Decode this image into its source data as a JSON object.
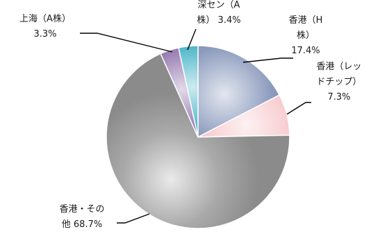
{
  "chart_data": {
    "type": "pie",
    "title": "",
    "slices": [
      {
        "label": "香港（H株）",
        "label_lines": [
          "香港（H",
          "株）",
          "17.4%"
        ],
        "value": 17.4,
        "color": "#8c9bbd"
      },
      {
        "label": "香港（レッドチップ）",
        "label_lines": [
          "香港（レッ",
          "ドチップ）",
          "7.3%"
        ],
        "value": 7.3,
        "color": "#f6c8cb"
      },
      {
        "label": "香港・その他",
        "label_lines": [
          "香港・その",
          "他 68.7%"
        ],
        "value": 68.7,
        "color": "#a9a9a9"
      },
      {
        "label": "上海（A株）",
        "label_lines": [
          "上海（A株）",
          "3.3%"
        ],
        "value": 3.3,
        "color": "#8a6aa8"
      },
      {
        "label": "深セン（A株）",
        "label_lines": [
          "深セン（A",
          "株） 3.4%"
        ],
        "value": 3.4,
        "color": "#3aaec3"
      }
    ],
    "start_angle_deg": 0,
    "direction": "clockwise",
    "legend": "none"
  }
}
